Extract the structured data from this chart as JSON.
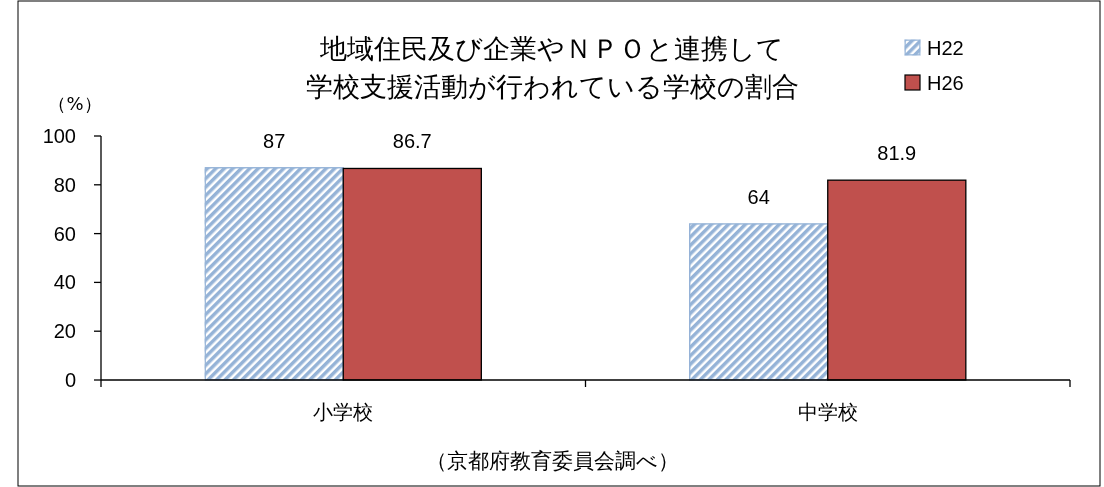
{
  "chart_data": {
    "type": "bar",
    "title": "地域住民及び企業やＮＰＯと連携して学校支援活動が行われている学校の割合",
    "ylabel": "（%）",
    "categories": [
      "小学校",
      "中学校"
    ],
    "series": [
      {
        "name": "H22",
        "color": "#95b3d7",
        "values": [
          87,
          64
        ]
      },
      {
        "name": "H26",
        "color": "#c0504d",
        "values": [
          86.7,
          81.9
        ]
      }
    ],
    "ylim": [
      0,
      100
    ],
    "yticks": [
      0,
      20,
      40,
      60,
      80,
      100
    ],
    "data_labels": true,
    "legend": "top right",
    "grid": false,
    "annotations": [
      "（京都府教育委員会調べ）"
    ]
  }
}
